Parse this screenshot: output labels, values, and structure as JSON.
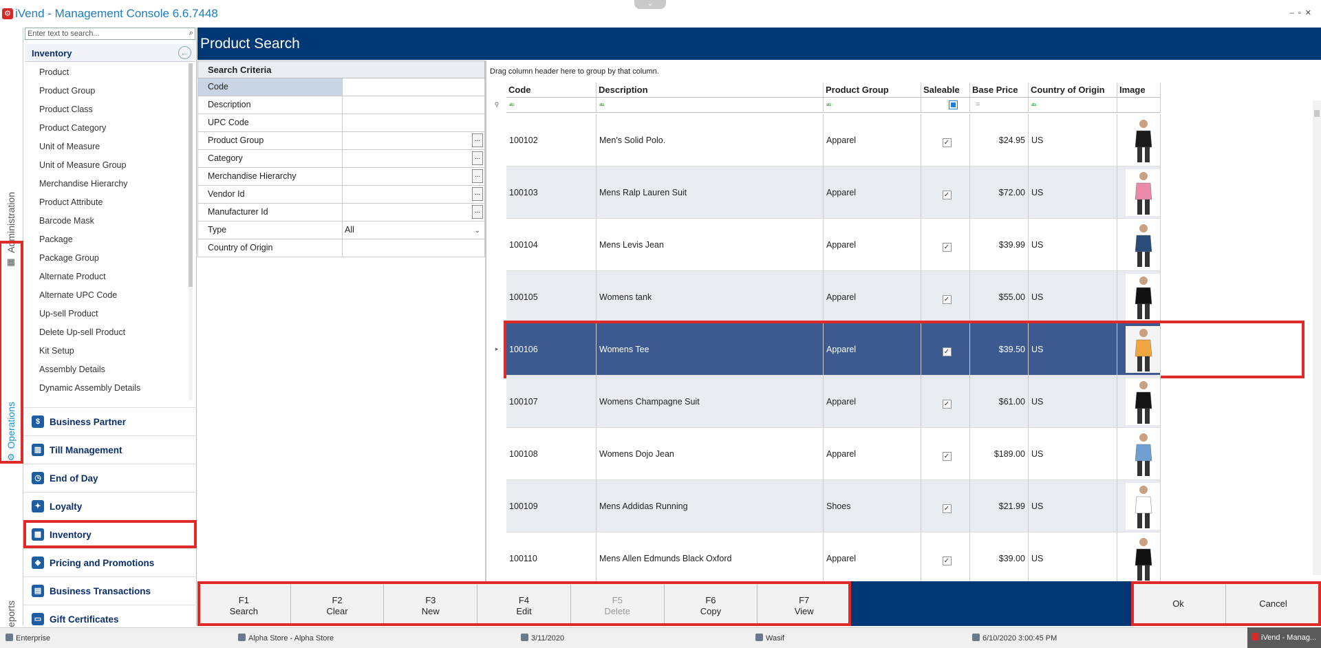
{
  "app": {
    "title": "iVend - Management Console  6.6.7448"
  },
  "vtabs": {
    "administration": "Administration",
    "operations": "Operations",
    "reports": "Reports"
  },
  "sidebar": {
    "search_placeholder": "Enter text to search...",
    "section_title": "Inventory",
    "items": [
      "Product",
      "Product Group",
      "Product Class",
      "Product Category",
      "Unit of Measure",
      "Unit of Measure Group",
      "Merchandise Hierarchy",
      "Product Attribute",
      "Barcode Mask",
      "Package",
      "Package Group",
      "Alternate Product",
      "Alternate UPC Code",
      "Up-sell Product",
      "Delete Up-sell Product",
      "Kit Setup",
      "Assembly Details",
      "Dynamic Assembly Details"
    ],
    "modules": [
      {
        "label": "Business Partner",
        "icon": "business-partner-icon"
      },
      {
        "label": "Till Management",
        "icon": "till-icon"
      },
      {
        "label": "End of Day",
        "icon": "clock-icon"
      },
      {
        "label": "Loyalty",
        "icon": "gift-icon"
      },
      {
        "label": "Inventory",
        "icon": "warehouse-icon"
      },
      {
        "label": "Pricing and Promotions",
        "icon": "tag-icon"
      },
      {
        "label": "Business Transactions",
        "icon": "transactions-icon"
      },
      {
        "label": "Gift Certificates",
        "icon": "certificate-icon"
      }
    ]
  },
  "page": {
    "title": "Product Search"
  },
  "criteria": {
    "header": "Search Criteria",
    "rows": [
      {
        "label": "Code",
        "value": "",
        "type": "text"
      },
      {
        "label": "Description",
        "value": "",
        "type": "text"
      },
      {
        "label": "UPC Code",
        "value": "",
        "type": "text"
      },
      {
        "label": "Product Group",
        "value": "",
        "type": "lookup"
      },
      {
        "label": "Category",
        "value": "",
        "type": "lookup"
      },
      {
        "label": "Merchandise Hierarchy",
        "value": "",
        "type": "lookup"
      },
      {
        "label": "Vendor Id",
        "value": "",
        "type": "lookup"
      },
      {
        "label": "Manufacturer Id",
        "value": "",
        "type": "lookup"
      },
      {
        "label": "Type",
        "value": "All",
        "type": "select"
      },
      {
        "label": "Country of Origin",
        "value": "",
        "type": "text"
      }
    ]
  },
  "grid": {
    "group_hint": "Drag column header here to group by that column.",
    "columns": [
      "Code",
      "Description",
      "Product Group",
      "Saleable",
      "Base Price",
      "Country of Origin",
      "Image"
    ],
    "rows": [
      {
        "code": "100102",
        "description": "Men's Solid Polo.",
        "group": "Apparel",
        "saleable": true,
        "price": "$24.95",
        "country": "US"
      },
      {
        "code": "100103",
        "description": "Mens Ralp Lauren Suit",
        "group": "Apparel",
        "saleable": true,
        "price": "$72.00",
        "country": "US"
      },
      {
        "code": "100104",
        "description": "Mens Levis Jean",
        "group": "Apparel",
        "saleable": true,
        "price": "$39.99",
        "country": "US"
      },
      {
        "code": "100105",
        "description": "Womens tank",
        "group": "Apparel",
        "saleable": true,
        "price": "$55.00",
        "country": "US"
      },
      {
        "code": "100106",
        "description": "Womens Tee",
        "group": "Apparel",
        "saleable": true,
        "price": "$39.50",
        "country": "US",
        "selected": true
      },
      {
        "code": "100107",
        "description": "Womens Champagne Suit",
        "group": "Apparel",
        "saleable": true,
        "price": "$61.00",
        "country": "US"
      },
      {
        "code": "100108",
        "description": "Womens Dojo Jean",
        "group": "Apparel",
        "saleable": true,
        "price": "$189.00",
        "country": "US"
      },
      {
        "code": "100109",
        "description": "Mens Addidas Running",
        "group": "Shoes",
        "saleable": true,
        "price": "$21.99",
        "country": "US"
      },
      {
        "code": "100110",
        "description": "Mens Allen Edmunds Black Oxford",
        "group": "Apparel",
        "saleable": true,
        "price": "$39.00",
        "country": "US"
      }
    ]
  },
  "fkeys": [
    {
      "key": "F1",
      "label": "Search",
      "enabled": true
    },
    {
      "key": "F2",
      "label": "Clear",
      "enabled": true
    },
    {
      "key": "F3",
      "label": "New",
      "enabled": true
    },
    {
      "key": "F4",
      "label": "Edit",
      "enabled": true
    },
    {
      "key": "F5",
      "label": "Delete",
      "enabled": false
    },
    {
      "key": "F6",
      "label": "Copy",
      "enabled": true
    },
    {
      "key": "F7",
      "label": "View",
      "enabled": true
    }
  ],
  "actions": {
    "ok": "Ok",
    "cancel": "Cancel"
  },
  "status": {
    "enterprise": "Enterprise",
    "store": "Alpha Store - Alpha Store",
    "date": "3/11/2020",
    "user": "Wasif",
    "datetime": "6/10/2020 3:00:45 PM",
    "taskbar": "iVend - Manag..."
  },
  "colors": {
    "header_bg": "#003775",
    "selected_row": "#3c5a8f",
    "highlight": "#e02a2a",
    "accent": "#1e7cc2"
  }
}
